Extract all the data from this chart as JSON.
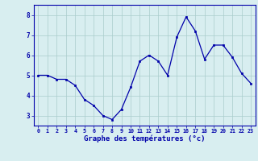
{
  "x": [
    0,
    1,
    2,
    3,
    4,
    5,
    6,
    7,
    8,
    9,
    10,
    11,
    12,
    13,
    14,
    15,
    16,
    17,
    18,
    19,
    20,
    21,
    22,
    23
  ],
  "y": [
    5.0,
    5.0,
    4.8,
    4.8,
    4.5,
    3.8,
    3.5,
    3.0,
    2.8,
    3.3,
    4.4,
    5.7,
    6.0,
    5.7,
    5.0,
    6.9,
    7.9,
    7.2,
    5.8,
    6.5,
    6.5,
    5.9,
    5.1,
    4.6
  ],
  "xlabel": "Graphe des températures (°c)",
  "ylim": [
    2.5,
    8.5
  ],
  "xlim": [
    -0.5,
    23.5
  ],
  "yticks": [
    3,
    4,
    5,
    6,
    7,
    8
  ],
  "xticks": [
    0,
    1,
    2,
    3,
    4,
    5,
    6,
    7,
    8,
    9,
    10,
    11,
    12,
    13,
    14,
    15,
    16,
    17,
    18,
    19,
    20,
    21,
    22,
    23
  ],
  "line_color": "#0000aa",
  "marker_color": "#0000aa",
  "bg_color": "#d8eef0",
  "grid_color": "#aacccc",
  "axis_color": "#0000aa",
  "label_color": "#0000aa",
  "tick_label_color": "#0000aa"
}
